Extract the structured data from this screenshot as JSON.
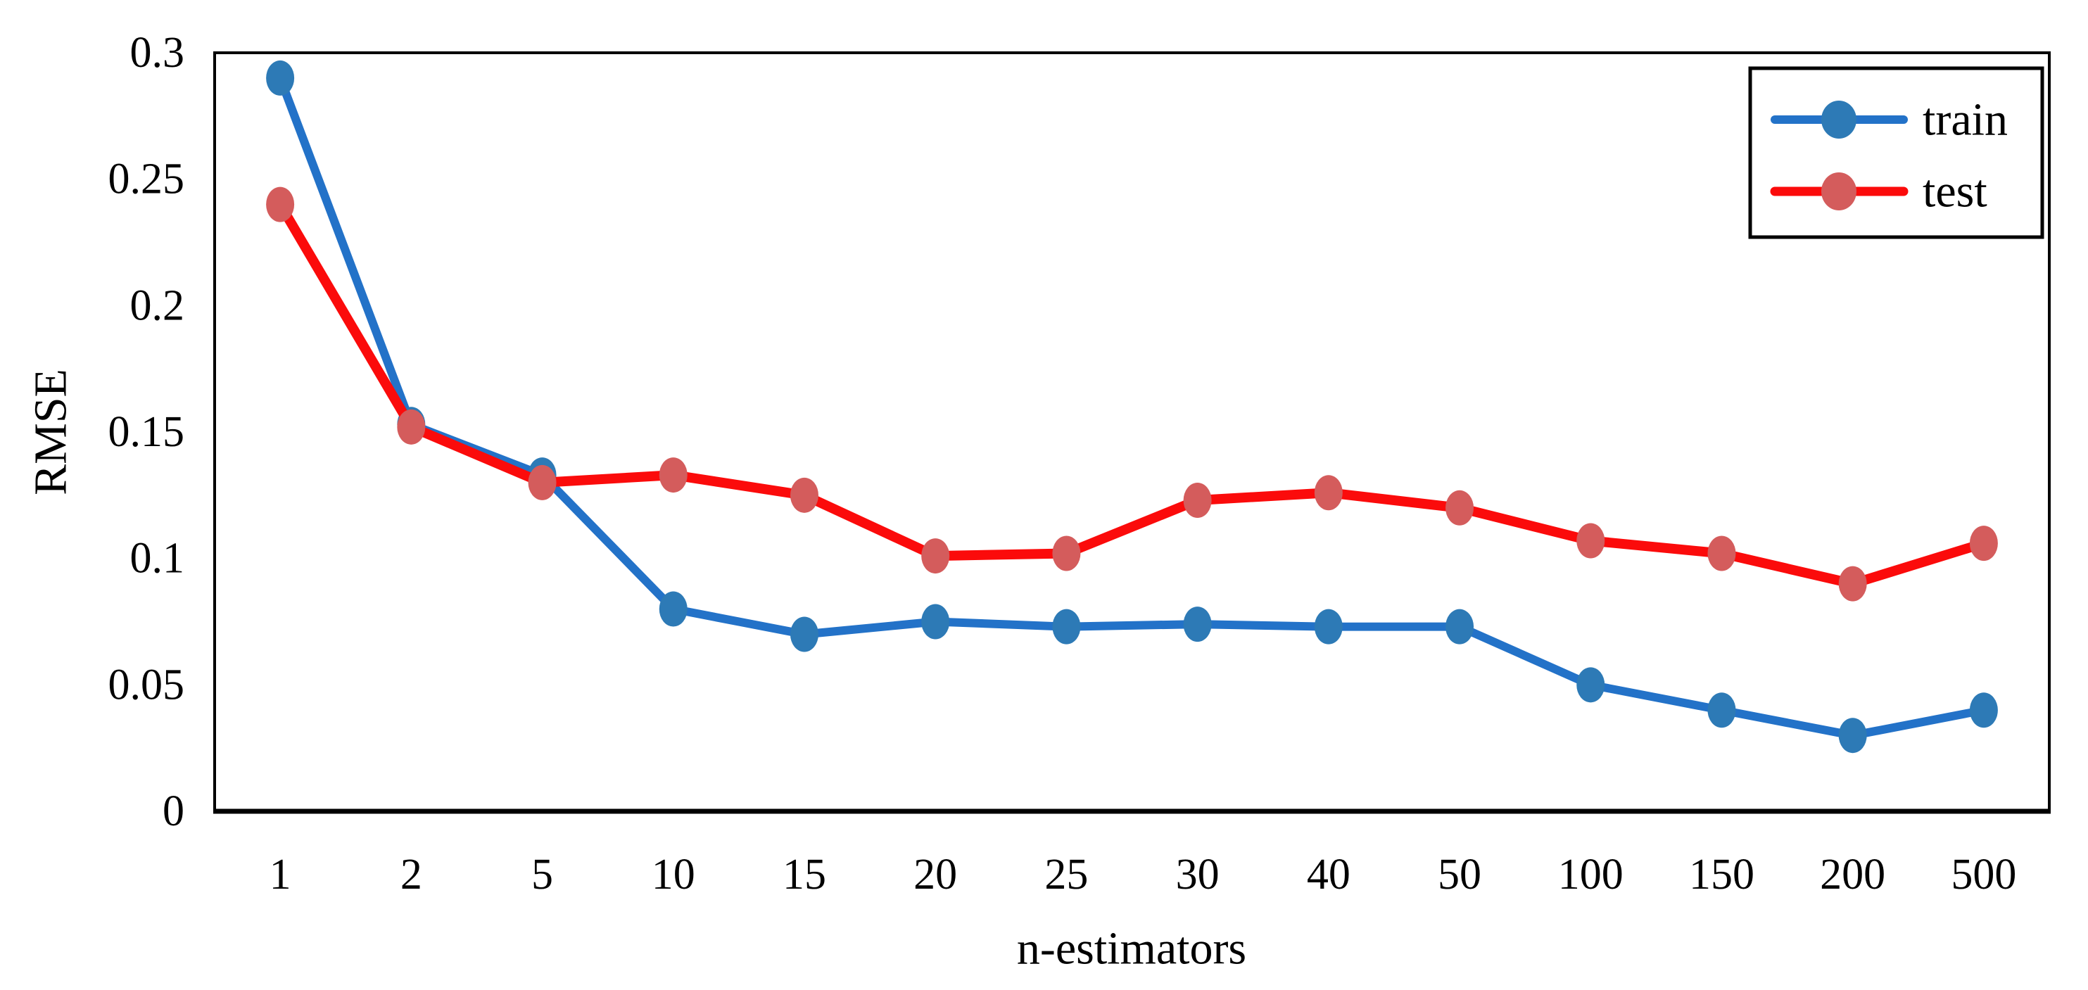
{
  "figure": {
    "background": "#ffffff",
    "frame_color": "#000000",
    "text_color": "#000000"
  },
  "chart_data": {
    "type": "line",
    "title": "",
    "xlabel": "n-estimators",
    "ylabel": "RMSE",
    "categories": [
      "1",
      "2",
      "5",
      "10",
      "15",
      "20",
      "25",
      "30",
      "40",
      "50",
      "100",
      "150",
      "200",
      "500"
    ],
    "series": [
      {
        "name": "train",
        "line_color": "#2372c8",
        "marker_color": "#2d7ab6",
        "values": [
          0.29,
          0.153,
          0.133,
          0.08,
          0.07,
          0.075,
          0.073,
          0.074,
          0.073,
          0.073,
          0.05,
          0.04,
          0.03,
          0.04
        ]
      },
      {
        "name": "test",
        "line_color": "#fb0b0b",
        "marker_color": "#d45c5c",
        "values": [
          0.24,
          0.152,
          0.13,
          0.133,
          0.125,
          0.101,
          0.102,
          0.123,
          0.126,
          0.12,
          0.107,
          0.102,
          0.09,
          0.106
        ]
      }
    ],
    "ylim": [
      0,
      0.3
    ],
    "ytick_values": [
      0,
      0.05,
      0.1,
      0.15,
      0.2,
      0.25,
      0.3
    ],
    "ytick_labels": [
      "0",
      "0.05",
      "0.1",
      "0.15",
      "0.2",
      "0.25",
      "0.3"
    ],
    "grid": false,
    "legend_position": "top-right",
    "legend_entries": [
      "train",
      "test"
    ]
  }
}
